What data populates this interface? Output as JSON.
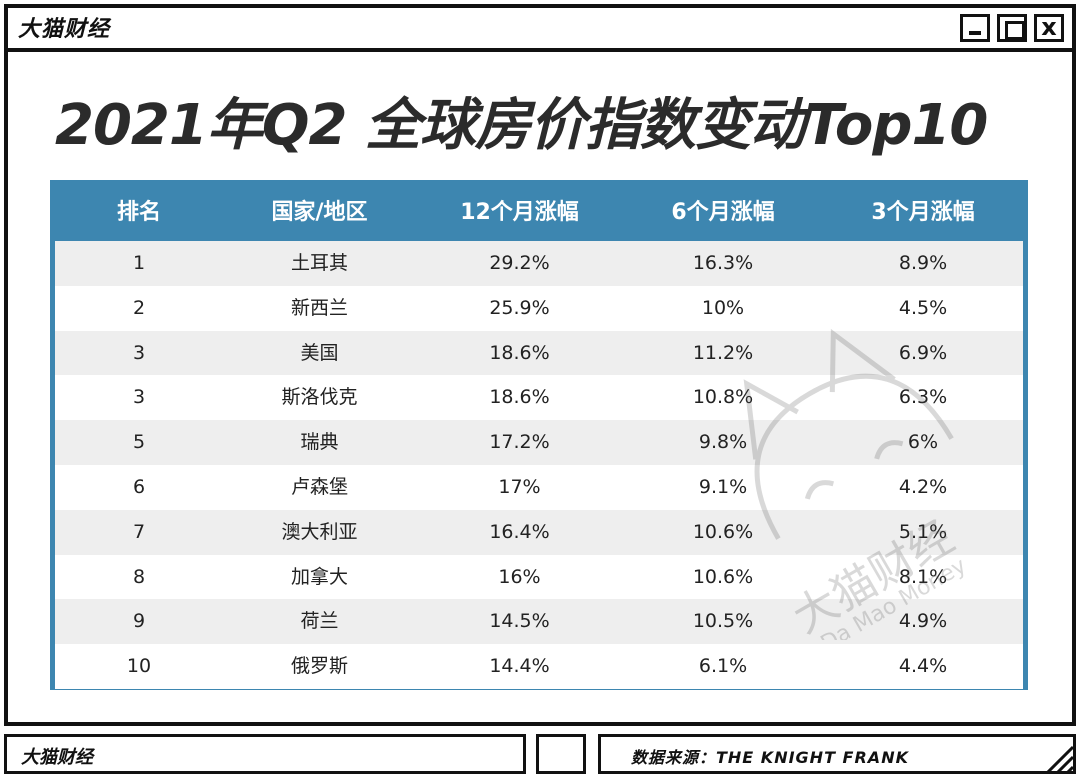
{
  "window": {
    "app_name": "大猫财经",
    "controls": {
      "minimize": "minimize-icon",
      "maximize": "maximize-icon",
      "close": "x"
    }
  },
  "headline": "2021年Q2 全球房价指数变动Top10",
  "table": {
    "columns": [
      "排名",
      "国家/地区",
      "12个月涨幅",
      "6个月涨幅",
      "3个月涨幅"
    ],
    "rows": [
      [
        "1",
        "土耳其",
        "29.2%",
        "16.3%",
        "8.9%"
      ],
      [
        "2",
        "新西兰",
        "25.9%",
        "10%",
        "4.5%"
      ],
      [
        "3",
        "美国",
        "18.6%",
        "11.2%",
        "6.9%"
      ],
      [
        "3",
        "斯洛伐克",
        "18.6%",
        "10.8%",
        "6.3%"
      ],
      [
        "5",
        "瑞典",
        "17.2%",
        "9.8%",
        "6%"
      ],
      [
        "6",
        "卢森堡",
        "17%",
        "9.1%",
        "4.2%"
      ],
      [
        "7",
        "澳大利亚",
        "16.4%",
        "10.6%",
        "5.1%"
      ],
      [
        "8",
        "加拿大",
        "16%",
        "10.6%",
        "8.1%"
      ],
      [
        "9",
        "荷兰",
        "14.5%",
        "10.5%",
        "4.9%"
      ],
      [
        "10",
        "俄罗斯",
        "14.4%",
        "6.1%",
        "4.4%"
      ]
    ]
  },
  "watermark": {
    "cn": "大猫财经",
    "en": "Da Mao Money"
  },
  "footer": {
    "brand": "大猫财经",
    "source": "数据来源：THE KNIGHT FRANK"
  },
  "colors": {
    "header_blue": "#3d86b0",
    "row_gray": "#eeeeee",
    "frame": "#111111"
  }
}
